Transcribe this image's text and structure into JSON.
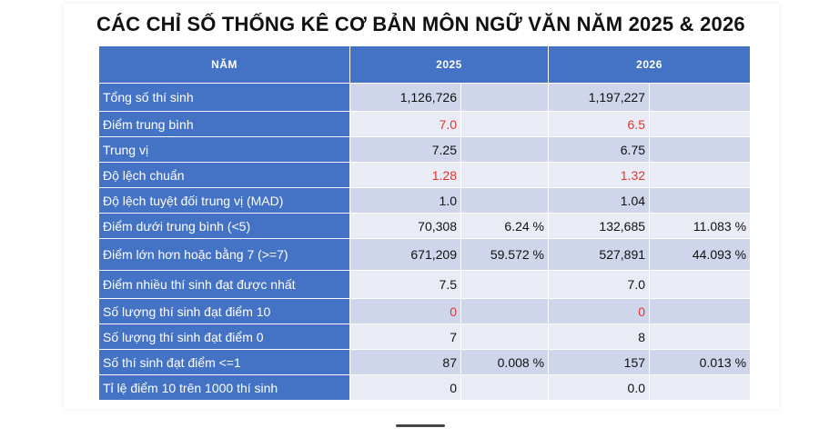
{
  "title": "CÁC CHỈ SỐ THỐNG KÊ CƠ BẢN MÔN NGỮ VĂN NĂM 2025 & 2026",
  "table": {
    "headers": [
      "NĂM",
      "2025",
      "2026"
    ],
    "rows": [
      {
        "label": "Tổng số thí sinh",
        "v2025": "1,126,726",
        "p2025": "",
        "v2026": "1,197,227",
        "p2026": "",
        "height": 31
      },
      {
        "label": "Điểm trung bình",
        "v2025": "7.0",
        "p2025": "",
        "v2026": "6.5",
        "p2026": "",
        "red": true,
        "height": 28
      },
      {
        "label": "Trung vị",
        "v2025": "7.25",
        "p2025": "",
        "v2026": "6.75",
        "p2026": "",
        "height": 28
      },
      {
        "label": "Độ lệch chuẩn",
        "v2025": "1.28",
        "p2025": "",
        "v2026": "1.32",
        "p2026": "",
        "red": true,
        "height": 28
      },
      {
        "label": "Độ lệch tuyệt đối trung vị (MAD)",
        "v2025": "1.0",
        "p2025": "",
        "v2026": "1.04",
        "p2026": "",
        "height": 28
      },
      {
        "label": "Điểm dưới trung bình (<5)",
        "v2025": "70,308",
        "p2025": "6.24 %",
        "v2026": "132,685",
        "p2026": "11.083 %",
        "height": 28
      },
      {
        "label": "Điểm lớn hơn hoặc bằng 7 (>=7)",
        "v2025": "671,209",
        "p2025": "59.572 %",
        "v2026": "527,891",
        "p2026": "44.093 %",
        "height": 35
      },
      {
        "label": "Điểm nhiều thí sinh đạt được nhất",
        "v2025": "7.5",
        "p2025": "",
        "v2026": "7.0",
        "p2026": "",
        "height": 31
      },
      {
        "label": "Số lượng thí sinh đạt điểm 10",
        "v2025": "0",
        "p2025": "",
        "v2026": "0",
        "p2026": "",
        "red": true,
        "height": 28
      },
      {
        "label": "Số lượng thí sinh đạt điểm 0",
        "v2025": "7",
        "p2025": "",
        "v2026": "8",
        "p2026": "",
        "height": 28
      },
      {
        "label": "Số thí sinh đạt điểm <=1",
        "v2025": "87",
        "p2025": "0.008 %",
        "v2026": "157",
        "p2026": "0.013 %",
        "height": 28
      },
      {
        "label": "Tỉ lệ điểm 10 trên 1000 thí sinh",
        "v2025": "0",
        "p2025": "",
        "v2026": "0.0",
        "p2026": "",
        "height": 28
      }
    ]
  }
}
